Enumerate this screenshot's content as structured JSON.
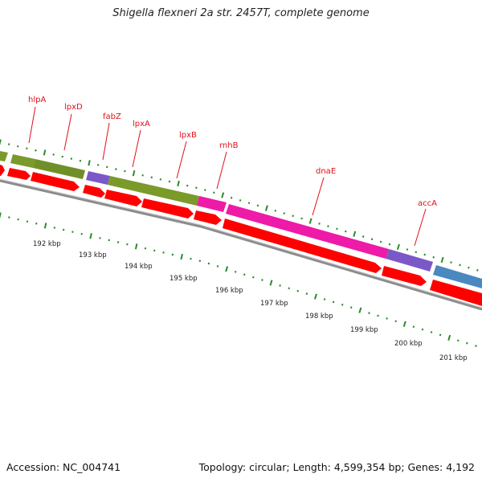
{
  "title": "Shigella flexneri 2a str. 2457T, complete genome",
  "footer": {
    "accession": "Accession: NC_004741",
    "summary": "Topology: circular; Length: 4,599,354 bp; Genes: 4,192"
  },
  "colors": {
    "gene_label": "#e0101a",
    "cds_arrow": "#ff0000",
    "backbone": "#8c8c8c",
    "tick_major": "#2a8a2a",
    "tick_minor": "#2a8a2a",
    "feature_green": "#7a9a2a",
    "feature_purple": "#7b58c8",
    "feature_magenta": "#ee1aa8",
    "feature_blue": "#4a88c0"
  },
  "genes": [
    {
      "name": "hlpA"
    },
    {
      "name": "lpxD"
    },
    {
      "name": "fabZ"
    },
    {
      "name": "lpxA"
    },
    {
      "name": "lpxB"
    },
    {
      "name": "rnhB"
    },
    {
      "name": "dnaE"
    },
    {
      "name": "accA"
    }
  ],
  "ruler": [
    "192 kbp",
    "193 kbp",
    "194 kbp",
    "195 kbp",
    "196 kbp",
    "197 kbp",
    "198 kbp",
    "199 kbp",
    "200 kbp",
    "201 kbp"
  ]
}
